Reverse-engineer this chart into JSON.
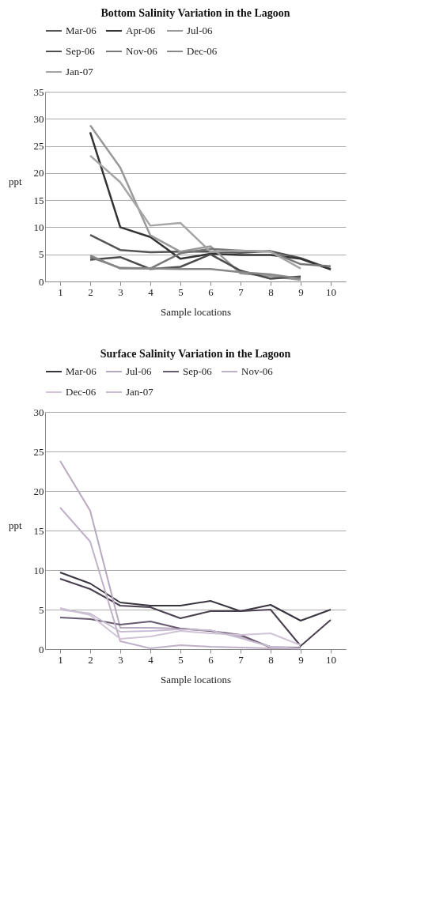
{
  "chart_data": [
    {
      "type": "line",
      "title": "Bottom Salinity Variation in the    Lagoon",
      "xlabel": "Sample locations",
      "ylabel": "ppt",
      "categories": [
        "1",
        "2",
        "3",
        "4",
        "5",
        "6",
        "7",
        "8",
        "9",
        "10"
      ],
      "ylim": [
        0,
        35
      ],
      "yticks": [
        0,
        5,
        10,
        15,
        20,
        25,
        30,
        35
      ],
      "grid": "y",
      "legend": "top",
      "marker": "none",
      "line_style": "solid",
      "series": [
        {
          "name": "Mar-06",
          "color": "#555555",
          "values": [
            null,
            8.6,
            5.8,
            5.4,
            5.5,
            5.5,
            5.3,
            5.6,
            4.3,
            2.3
          ]
        },
        {
          "name": "Apr-06",
          "color": "#333333",
          "values": [
            null,
            27.5,
            10.0,
            8.2,
            4.2,
            5.1,
            4.9,
            4.9,
            4.2,
            2.2
          ]
        },
        {
          "name": "Jul-06",
          "color": "#999999",
          "values": [
            null,
            28.8,
            21.0,
            8.5,
            5.5,
            6.5,
            1.5,
            1.0,
            0.3,
            null
          ]
        },
        {
          "name": "Sep-06",
          "color": "#4d4d4d",
          "values": [
            null,
            4.0,
            4.5,
            2.3,
            2.7,
            5.0,
            2.0,
            0.5,
            0.9,
            null
          ]
        },
        {
          "name": "Nov-06",
          "color": "#777777",
          "values": [
            null,
            4.5,
            2.5,
            2.4,
            5.2,
            6.0,
            5.7,
            5.5,
            3.2,
            2.8
          ]
        },
        {
          "name": "Dec-06",
          "color": "#888888",
          "values": [
            null,
            4.8,
            2.4,
            2.4,
            2.3,
            2.3,
            1.7,
            1.3,
            0.5,
            null
          ]
        },
        {
          "name": "Jan-07",
          "color": "#a5a5a5",
          "values": [
            null,
            23.2,
            18.3,
            10.3,
            10.8,
            5.5,
            5.7,
            5.5,
            2.4,
            null
          ]
        }
      ]
    },
    {
      "type": "line",
      "title": "Surface Salinity Variation in the Lagoon",
      "xlabel": "Sample locations",
      "ylabel": "ppt",
      "categories": [
        "1",
        "2",
        "3",
        "4",
        "5",
        "6",
        "7",
        "8",
        "9",
        "10"
      ],
      "ylim": [
        0,
        30
      ],
      "yticks": [
        0,
        5,
        10,
        15,
        20,
        25,
        30
      ],
      "grid": "y",
      "legend": "top",
      "marker": "none",
      "line_style": "solid",
      "series": [
        {
          "name": "Mar-06",
          "color": "#3a3440",
          "values": [
            9.7,
            8.3,
            5.9,
            5.5,
            5.5,
            6.1,
            4.8,
            5.6,
            3.6,
            5.0
          ]
        },
        {
          "color": "#4a4050",
          "values": [
            8.9,
            7.6,
            5.5,
            5.3,
            3.9,
            4.8,
            4.8,
            5.0,
            0.4,
            3.7
          ]
        },
        {
          "name": "Jul-06",
          "color": "#b8a8c0",
          "values": [
            23.8,
            17.5,
            2.7,
            2.7,
            2.6,
            2.3,
            1.6,
            0.3,
            0.2,
            null
          ]
        },
        {
          "name": "Sep-06",
          "color": "#6a5a70",
          "values": [
            4.0,
            3.8,
            3.1,
            3.5,
            2.6,
            2.3,
            1.8,
            0.2,
            0.2,
            null
          ]
        },
        {
          "name": "Nov-06",
          "color": "#c0b0c8",
          "values": [
            17.9,
            13.6,
            1.0,
            0.1,
            0.5,
            0.3,
            0.2,
            0.1,
            0.1,
            null
          ]
        },
        {
          "name": "Dec-06",
          "color": "#d0c4d6",
          "values": [
            5.2,
            4.3,
            1.3,
            1.6,
            2.3,
            2.0,
            1.8,
            2.0,
            0.5,
            null
          ]
        },
        {
          "name": "Jan-07",
          "color": "#c8bcd0",
          "values": [
            5.0,
            4.5,
            2.2,
            2.3,
            2.5,
            2.4,
            1.4,
            0.3,
            0.1,
            null
          ]
        }
      ]
    }
  ]
}
